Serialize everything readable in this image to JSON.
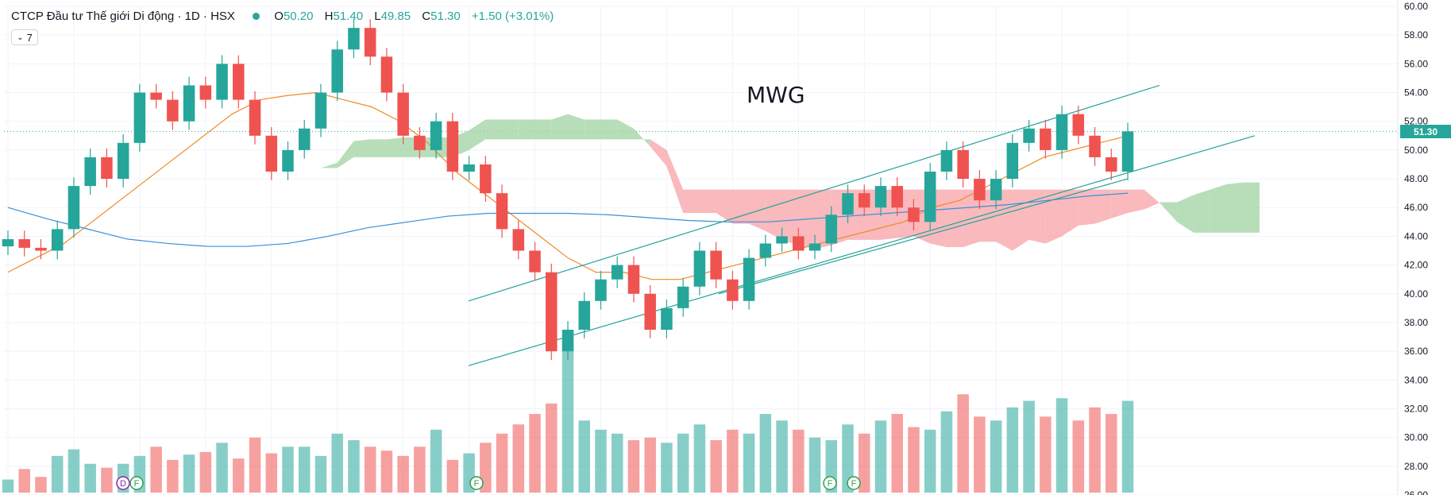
{
  "header": {
    "title": "CTCP Đầu tư Thế giới Di động · 1D · HSX",
    "open_label": "O",
    "open": "50.20",
    "high_label": "H",
    "high": "51.40",
    "low_label": "L",
    "low": "49.85",
    "close_label": "C",
    "close": "51.30",
    "change": "+1.50 (+3.01%)",
    "indicator_count": "7"
  },
  "ticker_annotation": "MWG",
  "last_price_tag": "51.30",
  "colors": {
    "up": "#26a69a",
    "down": "#ef5350",
    "cloud_bull": "#a5d6a7",
    "cloud_bear": "#f7a7ad",
    "ma_short": "#f08a24",
    "ma_long": "#3b8fd9",
    "trendline": "#24a39a"
  },
  "event_markers": [
    "D",
    "F",
    "F",
    "F",
    "F"
  ],
  "chart_data": {
    "type": "candlestick",
    "price_axis": {
      "ylim": [
        26,
        60
      ],
      "ticks": [
        "26.00",
        "28.00",
        "30.00",
        "32.00",
        "34.00",
        "36.00",
        "38.00",
        "40.00",
        "42.00",
        "44.00",
        "46.00",
        "48.00",
        "50.00",
        "52.00",
        "54.00",
        "56.00",
        "58.00",
        "60.00"
      ]
    },
    "current_price": 51.3,
    "price_path": [
      43.8,
      43.2,
      43.0,
      44.5,
      47.5,
      49.5,
      48.0,
      50.5,
      54.0,
      53.5,
      52.0,
      54.5,
      53.5,
      56.0,
      53.5,
      51.0,
      48.5,
      50.0,
      51.5,
      54.0,
      57.0,
      58.5,
      56.5,
      54.0,
      51.0,
      50.0,
      52.0,
      48.5,
      49.0,
      47.0,
      44.5,
      43.0,
      41.5,
      36.0,
      37.5,
      39.5,
      41.0,
      42.0,
      40.0,
      37.5,
      39.0,
      40.5,
      43.0,
      41.0,
      39.5,
      42.5,
      43.5,
      44.0,
      43.0,
      43.5,
      45.5,
      47.0,
      46.0,
      47.5,
      46.0,
      45.0,
      48.5,
      50.0,
      48.0,
      46.5,
      48.0,
      50.5,
      51.5,
      50.0,
      52.5,
      51.0,
      49.5,
      48.5,
      51.3
    ],
    "volume_relative": [
      0.1,
      0.18,
      0.12,
      0.28,
      0.33,
      0.22,
      0.19,
      0.22,
      0.28,
      0.35,
      0.25,
      0.29,
      0.31,
      0.38,
      0.26,
      0.42,
      0.3,
      0.35,
      0.35,
      0.28,
      0.45,
      0.4,
      0.35,
      0.32,
      0.28,
      0.35,
      0.48,
      0.25,
      0.3,
      0.38,
      0.45,
      0.52,
      0.6,
      0.68,
      1.15,
      0.55,
      0.48,
      0.45,
      0.4,
      0.42,
      0.38,
      0.45,
      0.52,
      0.4,
      0.48,
      0.45,
      0.6,
      0.55,
      0.48,
      0.42,
      0.4,
      0.52,
      0.45,
      0.55,
      0.6,
      0.5,
      0.48,
      0.62,
      0.75,
      0.58,
      0.55,
      0.65,
      0.7,
      0.58,
      0.72,
      0.55,
      0.65,
      0.6,
      0.7
    ],
    "ma_short": [
      41.5,
      42.5,
      43.5,
      45.0,
      46.5,
      48.0,
      49.5,
      51.0,
      52.5,
      53.5,
      53.8,
      54.0,
      53.5,
      53.0,
      52.0,
      50.5,
      48.5,
      47.0,
      45.5,
      44.0,
      42.5,
      41.5,
      41.5,
      41.0,
      41.0,
      41.5,
      42.0,
      42.5,
      43.0,
      43.5,
      44.0,
      44.5,
      45.0,
      46.0,
      46.5,
      47.5,
      48.5,
      49.5,
      50.0,
      50.5,
      51.0
    ],
    "ma_long": [
      46.0,
      45.2,
      44.5,
      43.8,
      43.5,
      43.3,
      43.3,
      43.5,
      44.0,
      44.6,
      45.0,
      45.4,
      45.6,
      45.6,
      45.6,
      45.5,
      45.3,
      45.1,
      45.0,
      45.0,
      45.2,
      45.4,
      45.6,
      45.8,
      46.0,
      46.2,
      46.5,
      46.8,
      47.0
    ],
    "trend_channel": {
      "upper": [
        [
          39.5,
          42.0
        ],
        [
          54.5,
          54.5
        ]
      ],
      "lower": [
        [
          35.0,
          36.5
        ],
        [
          51.0,
          51.0
        ]
      ],
      "extra_line": [
        [
          40.0,
          40.0
        ],
        [
          50.5,
          48.0
        ]
      ]
    }
  }
}
